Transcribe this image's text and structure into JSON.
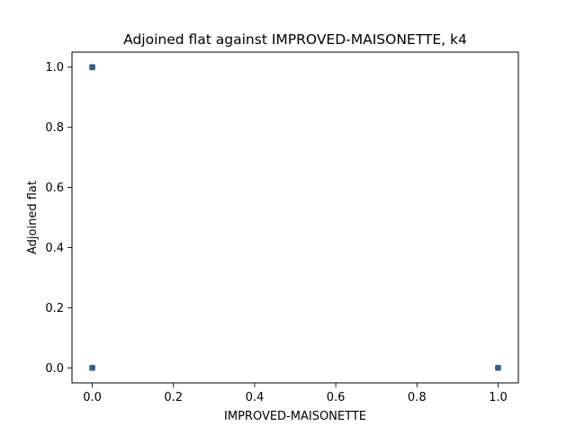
{
  "chart_data": {
    "type": "scatter",
    "title": "Adjoined flat against IMPROVED-MAISONETTE, k4",
    "xlabel": "IMPROVED-MAISONETTE",
    "ylabel": "Adjoined flat",
    "xlim": [
      -0.05,
      1.05
    ],
    "ylim": [
      -0.05,
      1.05
    ],
    "xticks": [
      0.0,
      0.2,
      0.4,
      0.6,
      0.8,
      1.0
    ],
    "yticks": [
      0.0,
      0.2,
      0.4,
      0.6,
      0.8,
      1.0
    ],
    "xtick_labels": [
      "0.0",
      "0.2",
      "0.4",
      "0.6",
      "0.8",
      "1.0"
    ],
    "ytick_labels": [
      "0.0",
      "0.2",
      "0.4",
      "0.6",
      "0.8",
      "1.0"
    ],
    "grid": false,
    "marker_color": "#2f5f8a",
    "marker_edge_color": "#3d6f8f",
    "series": [
      {
        "name": "points",
        "points": [
          {
            "x": 0.0,
            "y": 1.0
          },
          {
            "x": 0.0,
            "y": 0.0
          },
          {
            "x": 1.0,
            "y": 0.0
          }
        ]
      }
    ]
  }
}
